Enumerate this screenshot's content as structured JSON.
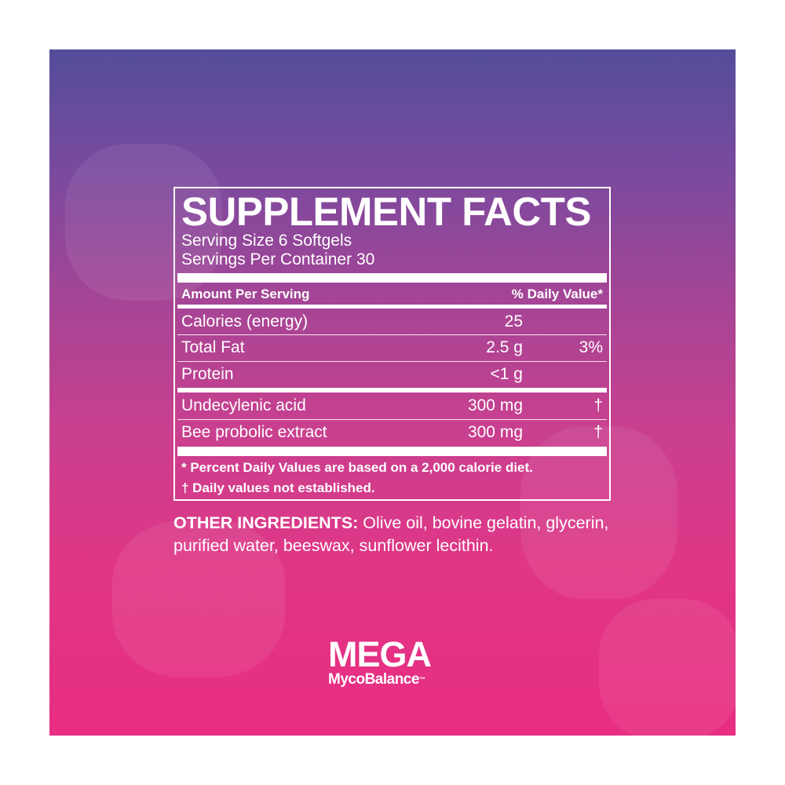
{
  "colors": {
    "gradient_top": "#544d9a",
    "gradient_bottom": "#e82d82",
    "text": "#ffffff"
  },
  "facts": {
    "title": "SUPPLEMENT FACTS",
    "serving_size": "Serving Size 6 Softgels",
    "servings_per_container": "Servings Per Container 30",
    "header_left": "Amount Per Serving",
    "header_right": "% Daily Value*",
    "rows": [
      {
        "name": "Calories (energy)",
        "amount": "25",
        "dv": ""
      },
      {
        "name": "Total Fat",
        "amount": "2.5 g",
        "dv": "3%"
      },
      {
        "name": "Protein",
        "amount": "<1 g",
        "dv": ""
      },
      {
        "name": "Undecylenic acid",
        "amount": "300 mg",
        "dv": "†"
      },
      {
        "name": "Bee probolic extract",
        "amount": "300 mg",
        "dv": "†"
      }
    ],
    "footnote1": "*  Percent Daily Values are based on a 2,000 calorie diet.",
    "footnote2": "† Daily values not established."
  },
  "other": {
    "label": "OTHER INGREDIENTS:",
    "text": " Olive oil, bovine gelatin, glycerin, purified water, beeswax, sunflower lecithin."
  },
  "logo": {
    "line1": "MEGA",
    "line2": "MycoBalance",
    "tm": "™"
  }
}
